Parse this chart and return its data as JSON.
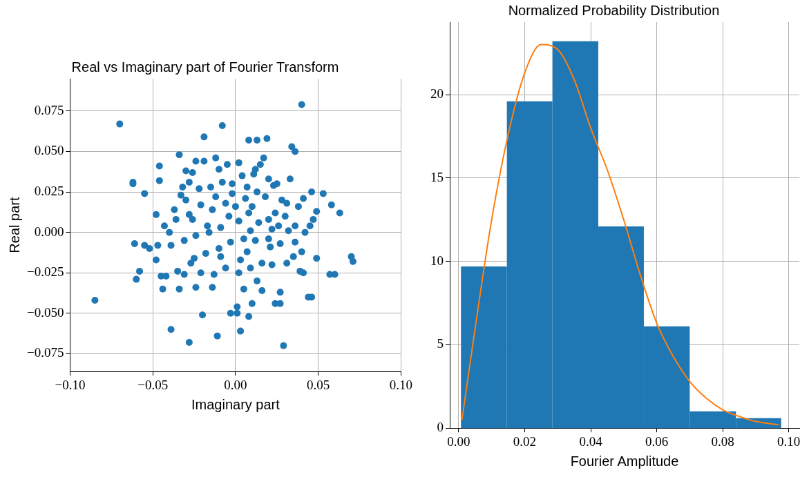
{
  "chart_data": [
    {
      "type": "scatter",
      "title": "Real vs Imaginary part of Fourier Transform",
      "xlabel": "Imaginary part",
      "ylabel": "Real part",
      "color": "#1f77b4",
      "marker": "circle",
      "grid": true,
      "xlim": [
        -0.1,
        0.1
      ],
      "ylim": [
        -0.086,
        0.095
      ],
      "xticks": [
        {
          "value": -0.1,
          "label": "−0.10"
        },
        {
          "value": -0.05,
          "label": "−0.05"
        },
        {
          "value": 0,
          "label": "0.00"
        },
        {
          "value": 0.05,
          "label": "0.05"
        },
        {
          "value": 0.1,
          "label": "0.10"
        }
      ],
      "yticks": [
        {
          "value": -0.075,
          "label": "−0.075"
        },
        {
          "value": -0.05,
          "label": "−0.050"
        },
        {
          "value": -0.025,
          "label": "−0.025"
        },
        {
          "value": 0,
          "label": "0.000"
        },
        {
          "value": 0.025,
          "label": "0.025"
        },
        {
          "value": 0.05,
          "label": "0.050"
        },
        {
          "value": 0.075,
          "label": "0.075"
        }
      ],
      "x": [
        -0.07,
        0.04,
        -0.085,
        0.029,
        0.07,
        0.071,
        -0.028,
        -0.011,
        -0.039,
        0.003,
        0.063,
        0.058,
        0.057,
        0.06,
        0.049,
        -0.062,
        -0.062,
        -0.061,
        -0.06,
        -0.058,
        -0.055,
        -0.046,
        -0.046,
        -0.048,
        -0.047,
        -0.045,
        -0.044,
        -0.048,
        -0.019,
        -0.008,
        0.008,
        0.013,
        0.019,
        0.034,
        0.036,
        0.033,
        0.046,
        0.053,
        0.049,
        0.047,
        0.045,
        0.036,
        0.023,
        0.03,
        0.042,
        -0.02,
        0.008,
        -0.003,
        0.001,
        0.01,
        -0.014,
        -0.024,
        -0.034,
        -0.031,
        -0.042,
        -0.035,
        -0.027,
        0.024,
        0.027,
        0.044,
        0.046,
        0.031,
        0.039,
        0.041,
        0.027,
        0.013,
        0.016,
        0.005,
        0.001,
        -0.04,
        -0.037,
        -0.033,
        -0.032,
        -0.028,
        -0.026,
        -0.034,
        -0.024,
        -0.019,
        -0.012,
        -0.01,
        -0.005,
        0.002,
        0.011,
        0.012,
        0.02,
        0.025,
        0.028,
        0.024,
        0.018,
        0.013,
        0.007,
        0.004,
        -0.002,
        -0.008,
        -0.015,
        -0.022,
        -0.03,
        -0.036,
        -0.043,
        -0.021,
        -0.014,
        -0.006,
        0.0,
        0.008,
        0.014,
        0.02,
        0.026,
        0.032,
        0.036,
        0.04,
        0.027,
        0.021,
        0.012,
        0.005,
        -0.003,
        -0.01,
        -0.018,
        -0.025,
        -0.031,
        -0.024,
        -0.017,
        -0.009,
        0.002,
        0.009,
        0.016,
        0.009,
        0.002,
        -0.006,
        -0.013,
        -0.021,
        -0.009,
        0.003,
        0.022,
        -0.016,
        -0.026,
        -0.03,
        0.017,
        0.015,
        -0.002,
        0.006,
        0.02,
        0.035,
        -0.004,
        -0.028,
        0.01,
        0.031,
        0.038,
        0.041,
        -0.039,
        -0.052,
        -0.055,
        0.007,
        0.022,
        -0.012
      ],
      "values": [
        0.067,
        0.079,
        -0.042,
        -0.07,
        -0.015,
        -0.018,
        -0.068,
        -0.064,
        -0.06,
        -0.061,
        0.012,
        0.017,
        -0.026,
        -0.026,
        -0.016,
        0.031,
        0.03,
        -0.007,
        -0.029,
        -0.024,
        0.024,
        0.041,
        0.032,
        0.011,
        -0.008,
        -0.027,
        -0.035,
        -0.017,
        0.059,
        0.066,
        0.057,
        0.057,
        0.058,
        0.053,
        0.05,
        0.033,
        0.025,
        0.024,
        0.013,
        0.008,
        0.004,
        0.004,
        0.029,
        0.01,
        0.0,
        -0.051,
        -0.052,
        -0.05,
        -0.05,
        -0.044,
        -0.034,
        -0.034,
        -0.035,
        -0.026,
        -0.027,
        -0.024,
        -0.019,
        -0.044,
        -0.044,
        -0.04,
        -0.04,
        -0.019,
        -0.024,
        -0.025,
        -0.037,
        -0.03,
        -0.036,
        -0.035,
        -0.046,
        0.0,
        0.014,
        0.023,
        0.028,
        0.031,
        0.037,
        0.048,
        0.044,
        0.044,
        0.046,
        0.039,
        0.042,
        0.043,
        0.036,
        0.039,
        0.033,
        0.03,
        0.02,
        0.012,
        0.022,
        0.025,
        0.028,
        0.035,
        0.03,
        0.031,
        0.028,
        0.027,
        0.02,
        0.008,
        0.004,
        0.017,
        0.014,
        0.018,
        0.016,
        0.012,
        0.006,
        0.008,
        0.004,
        0.001,
        -0.006,
        -0.012,
        -0.007,
        -0.009,
        -0.005,
        -0.004,
        -0.006,
        -0.01,
        -0.013,
        -0.016,
        -0.005,
        -0.002,
        0.004,
        0.003,
        0.007,
        0.001,
        -0.019,
        -0.022,
        -0.025,
        -0.022,
        -0.026,
        -0.025,
        -0.015,
        -0.017,
        -0.02,
        0.0,
        0.008,
        0.038,
        0.046,
        0.042,
        0.024,
        0.021,
        -0.004,
        -0.015,
        0.01,
        0.011,
        0.016,
        0.018,
        0.016,
        0.021,
        -0.008,
        -0.01,
        -0.008,
        -0.012,
        0.002,
        0.022
      ]
    },
    {
      "type": "histogram",
      "title": "Normalized Probability Distribution",
      "xlabel": "Fourier Amplitude",
      "grid": true,
      "xlim": [
        -0.0027,
        0.1032
      ],
      "ylim": [
        0,
        24.35
      ],
      "xticks": [
        {
          "value": 0,
          "label": "0.00"
        },
        {
          "value": 0.02,
          "label": "0.02"
        },
        {
          "value": 0.04,
          "label": "0.04"
        },
        {
          "value": 0.06,
          "label": "0.06"
        },
        {
          "value": 0.08,
          "label": "0.08"
        },
        {
          "value": 0.1,
          "label": "0.10"
        }
      ],
      "yticks": [
        0,
        5,
        10,
        15,
        20
      ],
      "bins": [
        0.0007,
        0.0146,
        0.0284,
        0.0423,
        0.0561,
        0.07,
        0.084,
        0.0977
      ],
      "series": [
        {
          "type": "histogram",
          "color": "#1f77b4",
          "values": [
            9.7,
            19.6,
            23.2,
            12.1,
            6.1,
            1.0,
            0.6
          ]
        },
        {
          "type": "line",
          "color": "#ff7f0e",
          "x": [
            0.001,
            0.005,
            0.01,
            0.015,
            0.02,
            0.025,
            0.03,
            0.035,
            0.04,
            0.045,
            0.05,
            0.055,
            0.06,
            0.065,
            0.07,
            0.075,
            0.08,
            0.085,
            0.09,
            0.097
          ],
          "values": [
            0.5,
            6,
            12.5,
            17.6,
            21.3,
            23,
            22.7,
            20.9,
            18,
            15.5,
            12.5,
            9.2,
            6.3,
            4.3,
            2.8,
            1.8,
            1.1,
            0.7,
            0.4,
            0.2
          ]
        }
      ]
    }
  ]
}
